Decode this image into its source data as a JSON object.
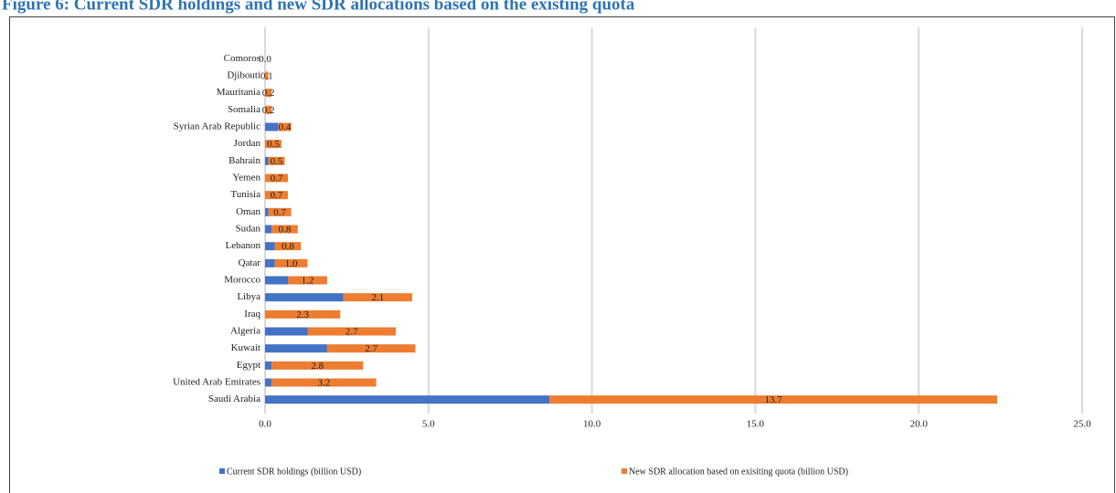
{
  "chart_data": {
    "type": "stacked-bar-horizontal",
    "title": "Figure 6: Current SDR holdings and new SDR allocations based on the existing quota",
    "categories": [
      "Comoros",
      "Djibouti",
      "Mauritania",
      "Somalia",
      "Syrian Arab Republic",
      "Jordan",
      "Bahrain",
      "Yemen",
      "Tunisia",
      "Oman",
      "Sudan",
      "Lebanon",
      "Qatar",
      "Morocco",
      "Libya",
      "Iraq",
      "Algeria",
      "Kuwait",
      "Egypt",
      "United Arab Emirates",
      "Saudi Arabia"
    ],
    "series": [
      {
        "name": "Current SDR holdings (billion USD)",
        "color": "#4472c4",
        "values": [
          0,
          0,
          0,
          0,
          0.4,
          0,
          0.1,
          0,
          0,
          0.1,
          0.2,
          0.3,
          0.3,
          0.7,
          2.4,
          0,
          1.3,
          1.9,
          0.2,
          0.2,
          8.7
        ]
      },
      {
        "name": "New SDR allocation based on exisiting quota (billion USD)",
        "color": "#ed7d31",
        "values": [
          0,
          0.1,
          0.2,
          0.2,
          0.4,
          0.5,
          0.5,
          0.7,
          0.7,
          0.7,
          0.8,
          0.8,
          1.0,
          1.2,
          2.1,
          2.3,
          2.7,
          2.7,
          2.8,
          3.2,
          13.7
        ],
        "value_labels": [
          "0.0",
          "0.1",
          "0.2",
          "0.2",
          "0.4",
          "0.5",
          "0.5",
          "0.7",
          "0.7",
          "0.7",
          "0.8",
          "0.8",
          "1.0",
          "1.2",
          "2.1",
          "2.3",
          "2.7",
          "2.7",
          "2.8",
          "3.2",
          "13.7"
        ]
      }
    ],
    "xlim": [
      0,
      25
    ],
    "xticks": [
      {
        "value": 0,
        "label": "0.0"
      },
      {
        "value": 5,
        "label": "5.0"
      },
      {
        "value": 10,
        "label": "10.0"
      },
      {
        "value": 15,
        "label": "15.0"
      },
      {
        "value": 20,
        "label": "20.0"
      },
      {
        "value": 25,
        "label": "25.0"
      }
    ],
    "grid": true,
    "legend": "bottom"
  }
}
